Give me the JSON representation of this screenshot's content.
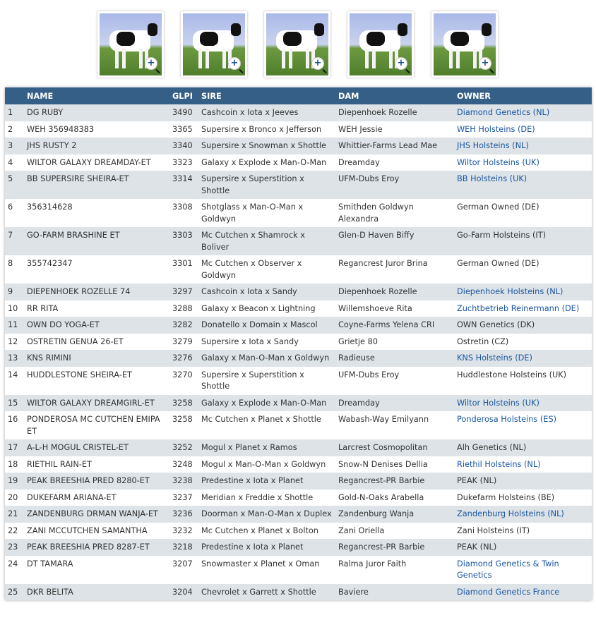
{
  "thumbnails": [
    {
      "alt": "cow-photo-1"
    },
    {
      "alt": "cow-photo-2"
    },
    {
      "alt": "cow-photo-3"
    },
    {
      "alt": "cow-photo-4"
    },
    {
      "alt": "cow-photo-5"
    }
  ],
  "table": {
    "headers": [
      "",
      "NAME",
      "GLPI",
      "SIRE",
      "DAM",
      "OWNER"
    ],
    "link_color": "#1a56a0",
    "header_color": "#355f86",
    "rows": [
      {
        "rank": "1",
        "name": "DG RUBY",
        "glpi": "3490",
        "sire": "Cashcoin x Iota x Jeeves",
        "dam": "Diepenhoek Rozelle",
        "owner": "Diamond Genetics (NL)",
        "owner_link": true
      },
      {
        "rank": "2",
        "name": "WEH 356948383",
        "glpi": "3365",
        "sire": "Supersire x Bronco x Jefferson",
        "dam": "WEH Jessie",
        "owner": "WEH Holsteins (DE)",
        "owner_link": true
      },
      {
        "rank": "3",
        "name": "JHS RUSTY 2",
        "glpi": "3340",
        "sire": "Supersire x Snowman x Shottle",
        "dam": "Whittier-Farms Lead Mae",
        "owner": "JHS Holsteins (NL)",
        "owner_link": true
      },
      {
        "rank": "4",
        "name": "WILTOR GALAXY DREAMDAY-ET",
        "glpi": "3323",
        "sire": "Galaxy x Explode x Man-O-Man",
        "dam": "Dreamday",
        "owner": "Wiltor Holsteins (UK)",
        "owner_link": true
      },
      {
        "rank": "5",
        "name": "BB SUPERSIRE SHEIRA-ET",
        "glpi": "3314",
        "sire": "Supersire x Superstition x Shottle",
        "dam": "UFM-Dubs Eroy",
        "owner": "BB Holsteins (UK)",
        "owner_link": true
      },
      {
        "rank": "6",
        "name": "356314628",
        "glpi": "3308",
        "sire": "Shotglass x Man-O-Man x Goldwyn",
        "dam": "Smithden Goldwyn Alexandra",
        "owner": "German Owned (DE)",
        "owner_link": false
      },
      {
        "rank": "7",
        "name": "GO-FARM BRASHINE ET",
        "glpi": "3303",
        "sire": "Mc Cutchen x Shamrock x Boliver",
        "dam": "Glen-D Haven Biffy",
        "owner": "Go-Farm Holsteins (IT)",
        "owner_link": false
      },
      {
        "rank": "8",
        "name": "355742347",
        "glpi": "3301",
        "sire": "Mc Cutchen x Observer x Goldwyn",
        "dam": "Regancrest Juror Brina",
        "owner": "German Owned (DE)",
        "owner_link": false
      },
      {
        "rank": "9",
        "name": "DIEPENHOEK ROZELLE 74",
        "glpi": "3297",
        "sire": "Cashcoin x Iota x Sandy",
        "dam": "Diepenhoek Rozelle",
        "owner": "Diepenhoek Holsteins (NL)",
        "owner_link": true
      },
      {
        "rank": "10",
        "name": "RR RITA",
        "glpi": "3288",
        "sire": "Galaxy x Beacon x Lightning",
        "dam": "Willemshoeve Rita",
        "owner": "Zuchtbetrieb Reinermann (DE)",
        "owner_link": true
      },
      {
        "rank": "11",
        "name": "OWN DO YOGA-ET",
        "glpi": "3282",
        "sire": "Donatello x Domain x Mascol",
        "dam": "Coyne-Farms Yelena CRI",
        "owner": "OWN Genetics (DK)",
        "owner_link": false
      },
      {
        "rank": "12",
        "name": "OSTRETIN GENUA 26-ET",
        "glpi": "3279",
        "sire": "Supersire x Iota x Sandy",
        "dam": "Grietje 80",
        "owner": "Ostretin (CZ)",
        "owner_link": false
      },
      {
        "rank": "13",
        "name": "KNS RIMINI",
        "glpi": "3276",
        "sire": "Galaxy x Man-O-Man x Goldwyn",
        "dam": "Radieuse",
        "owner": "KNS Holsteins (DE)",
        "owner_link": true
      },
      {
        "rank": "14",
        "name": "HUDDLESTONE SHEIRA-ET",
        "glpi": "3270",
        "sire": "Supersire x Superstition x Shottle",
        "dam": "UFM-Dubs Eroy",
        "owner": "Huddlestone Holsteins (UK)",
        "owner_link": false
      },
      {
        "rank": "15",
        "name": "WILTOR GALAXY DREAMGIRL-ET",
        "glpi": "3258",
        "sire": "Galaxy x Explode x Man-O-Man",
        "dam": "Dreamday",
        "owner": "Wiltor Holsteins (UK)",
        "owner_link": true
      },
      {
        "rank": "16",
        "name": "PONDEROSA MC CUTCHEN EMIPA ET",
        "glpi": "3258",
        "sire": "Mc Cutchen x Planet x Shottle",
        "dam": "Wabash-Way Emilyann",
        "owner": "Ponderosa Holsteins (ES)",
        "owner_link": true
      },
      {
        "rank": "17",
        "name": "A-L-H MOGUL CRISTEL-ET",
        "glpi": "3252",
        "sire": "Mogul x Planet x Ramos",
        "dam": "Larcrest Cosmopolitan",
        "owner": "Alh Genetics (NL)",
        "owner_link": false
      },
      {
        "rank": "18",
        "name": "RIETHIL RAIN-ET",
        "glpi": "3248",
        "sire": "Mogul x Man-O-Man x Goldwyn",
        "dam": "Snow-N Denises Dellia",
        "owner": "Riethil Holsteins (NL)",
        "owner_link": true
      },
      {
        "rank": "19",
        "name": "PEAK BREESHIA PRED 8280-ET",
        "glpi": "3238",
        "sire": "Predestine x Iota x Planet",
        "dam": "Regancrest-PR Barbie",
        "owner": "PEAK (NL)",
        "owner_link": false
      },
      {
        "rank": "20",
        "name": "DUKEFARM ARIANA-ET",
        "glpi": "3237",
        "sire": "Meridian x Freddie x Shottle",
        "dam": "Gold-N-Oaks Arabella",
        "owner": "Dukefarm Holsteins (BE)",
        "owner_link": false
      },
      {
        "rank": "21",
        "name": "ZANDENBURG DRMAN WANJA-ET",
        "glpi": "3236",
        "sire": "Doorman x Man-O-Man x Duplex",
        "dam": "Zandenburg Wanja",
        "owner": "Zandenburg Holsteins (NL)",
        "owner_link": true
      },
      {
        "rank": "22",
        "name": "ZANI MCCUTCHEN SAMANTHA",
        "glpi": "3232",
        "sire": "Mc Cutchen x Planet x Bolton",
        "dam": "Zani Oriella",
        "owner": "Zani Holsteins (IT)",
        "owner_link": false
      },
      {
        "rank": "23",
        "name": "PEAK BREESHIA PRED 8287-ET",
        "glpi": "3218",
        "sire": "Predestine x Iota x Planet",
        "dam": "Regancrest-PR Barbie",
        "owner": "PEAK (NL)",
        "owner_link": false
      },
      {
        "rank": "24",
        "name": "DT TAMARA",
        "glpi": "3207",
        "sire": "Snowmaster x Planet x Oman",
        "dam": "Ralma Juror Faith",
        "owner": "Diamond Genetics & Twin Genetics",
        "owner_link": true
      },
      {
        "rank": "25",
        "name": "DKR BELITA",
        "glpi": "3204",
        "sire": "Chevrolet x Garrett x Shottle",
        "dam": "Baviere",
        "owner": "Diamond Genetics France",
        "owner_link": true
      }
    ]
  }
}
